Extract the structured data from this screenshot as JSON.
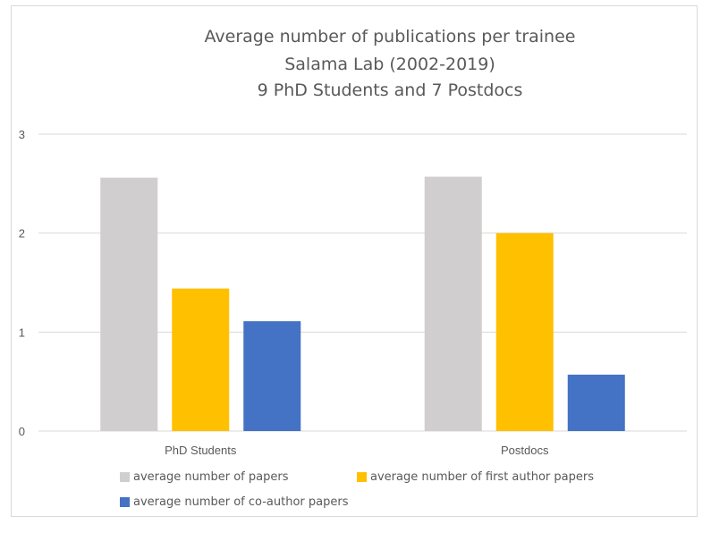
{
  "chart_data": {
    "type": "bar",
    "title_lines": [
      "Average number of publications per trainee",
      "Salama Lab (2002-2019)",
      "9 PhD Students and 7 Postdocs"
    ],
    "categories": [
      "PhD Students",
      "Postdocs"
    ],
    "series": [
      {
        "name": "average number of papers",
        "color": "#d0cece",
        "values": [
          2.56,
          2.57
        ]
      },
      {
        "name": "average number of first author papers",
        "color": "#ffc000",
        "values": [
          1.44,
          2.0
        ]
      },
      {
        "name": "average number of co-author papers",
        "color": "#4472c4",
        "values": [
          1.11,
          0.57
        ]
      }
    ],
    "y_ticks": [
      "0",
      "1",
      "2",
      "3"
    ],
    "ylim": [
      0,
      3
    ],
    "grid": true,
    "legend_position": "bottom"
  }
}
